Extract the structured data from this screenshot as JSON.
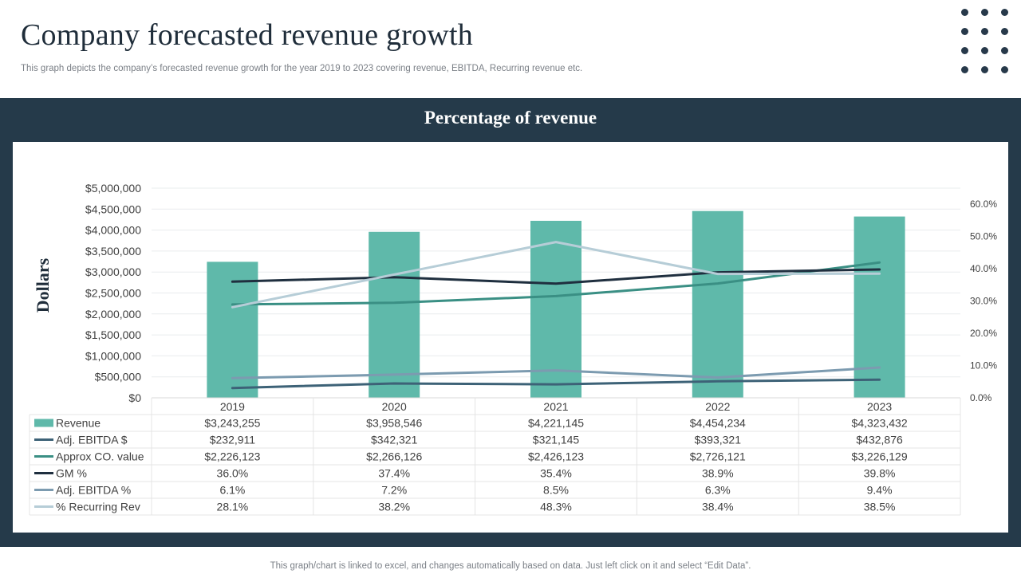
{
  "page": {
    "title": "Company forecasted revenue growth",
    "subtitle": "This graph depicts the company’s forecasted revenue growth for the year 2019 to  2023 covering revenue, EBITDA,  Recurring revenue etc.",
    "footer": "This graph/chart is linked to excel,  and changes automatically based on data. Just left click on it and select “Edit Data”.",
    "decor_icon": "dot-grid-icon"
  },
  "colors": {
    "band": "#253a4a",
    "revenue": "#5fb9aa",
    "adj_ebitda_usd": "#3d6277",
    "approx_co_value": "#3a8f84",
    "gm_pct": "#1f2f3f",
    "adj_ebitda_pct": "#7c9bb0",
    "recurring_rev": "#b6cdd7"
  },
  "chart_data": {
    "type": "bar",
    "title": "Percentage of revenue",
    "ylabel": "Dollars",
    "categories": [
      "2019",
      "2020",
      "2021",
      "2022",
      "2023"
    ],
    "ylim": [
      0,
      5000000
    ],
    "y2lim": [
      0,
      65
    ],
    "yticks": [
      "$0",
      "$500,000",
      "$1,000,000",
      "$1,500,000",
      "$2,000,000",
      "$2,500,000",
      "$3,000,000",
      "$3,500,000",
      "$4,000,000",
      "$4,500,000",
      "$5,000,000"
    ],
    "y2ticks": [
      "0.0%",
      "10.0%",
      "20.0%",
      "30.0%",
      "40.0%",
      "50.0%",
      "60.0%"
    ],
    "legend_position": "data-table",
    "grid": true,
    "series": [
      {
        "key": "revenue",
        "name": "Revenue",
        "type": "bar",
        "axis": "primary",
        "values": [
          3243255,
          3958546,
          4221145,
          4454234,
          4323432
        ],
        "labels": [
          "$3,243,255",
          "$3,958,546",
          "$4,221,145",
          "$4,454,234",
          "$4,323,432"
        ]
      },
      {
        "key": "adj_ebitda_usd",
        "name": "Adj. EBITDA $",
        "type": "line",
        "axis": "primary",
        "values": [
          232911,
          342321,
          321145,
          393321,
          432876
        ],
        "labels": [
          "$232,911",
          "$342,321",
          "$321,145",
          "$393,321",
          "$432,876"
        ]
      },
      {
        "key": "approx_co_value",
        "name": "Approx CO. value",
        "type": "line",
        "axis": "primary",
        "values": [
          2226123,
          2266126,
          2426123,
          2726121,
          3226129
        ],
        "labels": [
          "$2,226,123",
          "$2,266,126",
          "$2,426,123",
          "$2,726,121",
          "$3,226,129"
        ]
      },
      {
        "key": "gm_pct",
        "name": "GM %",
        "type": "line",
        "axis": "secondary",
        "values": [
          36.0,
          37.4,
          35.4,
          38.9,
          39.8
        ],
        "labels": [
          "36.0%",
          "37.4%",
          "35.4%",
          "38.9%",
          "39.8%"
        ]
      },
      {
        "key": "adj_ebitda_pct",
        "name": "Adj. EBITDA %",
        "type": "line",
        "axis": "secondary",
        "values": [
          6.1,
          7.2,
          8.5,
          6.3,
          9.4
        ],
        "labels": [
          "6.1%",
          "7.2%",
          "8.5%",
          "6.3%",
          "9.4%"
        ]
      },
      {
        "key": "recurring_rev",
        "name": "% Recurring Rev",
        "type": "line",
        "axis": "secondary",
        "values": [
          28.1,
          38.2,
          48.3,
          38.4,
          38.5
        ],
        "labels": [
          "28.1%",
          "38.2%",
          "48.3%",
          "38.4%",
          "38.5%"
        ]
      }
    ]
  }
}
